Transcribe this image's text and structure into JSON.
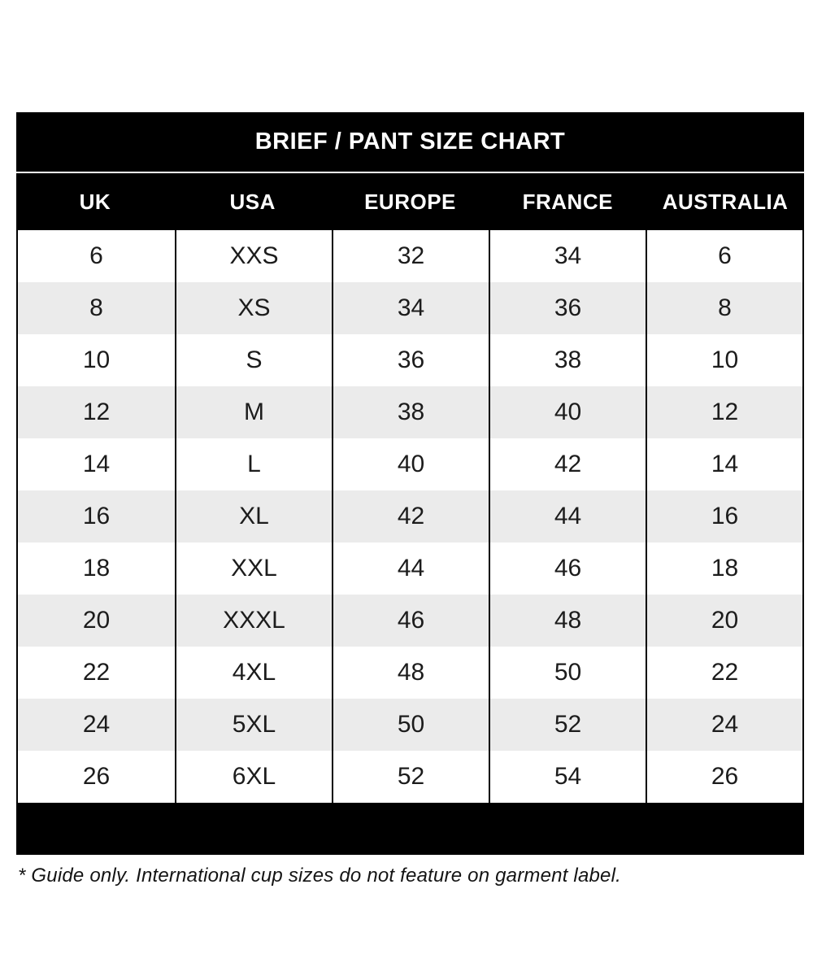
{
  "chart_data": {
    "type": "table",
    "title": "BRIEF / PANT SIZE CHART",
    "columns": [
      "UK",
      "USA",
      "EUROPE",
      "FRANCE",
      "AUSTRALIA"
    ],
    "rows": [
      [
        "6",
        "XXS",
        "32",
        "34",
        "6"
      ],
      [
        "8",
        "XS",
        "34",
        "36",
        "8"
      ],
      [
        "10",
        "S",
        "36",
        "38",
        "10"
      ],
      [
        "12",
        "M",
        "38",
        "40",
        "12"
      ],
      [
        "14",
        "L",
        "40",
        "42",
        "14"
      ],
      [
        "16",
        "XL",
        "42",
        "44",
        "16"
      ],
      [
        "18",
        "XXL",
        "44",
        "46",
        "18"
      ],
      [
        "20",
        "XXXL",
        "46",
        "48",
        "20"
      ],
      [
        "22",
        "4XL",
        "48",
        "50",
        "22"
      ],
      [
        "24",
        "5XL",
        "50",
        "52",
        "24"
      ],
      [
        "26",
        "6XL",
        "52",
        "54",
        "26"
      ]
    ],
    "layout": {
      "alternating_row_shading": true,
      "shaded_rows_uk_sizes": [
        "8",
        "12",
        "16",
        "20",
        "24"
      ]
    }
  },
  "footnote": "* Guide only. International cup sizes do not feature on garment label.",
  "colors": {
    "band_bg": "#000000",
    "band_text": "#ffffff",
    "row_alt_bg": "#ebebeb",
    "body_text": "#1c1c1c",
    "border": "#000000"
  }
}
